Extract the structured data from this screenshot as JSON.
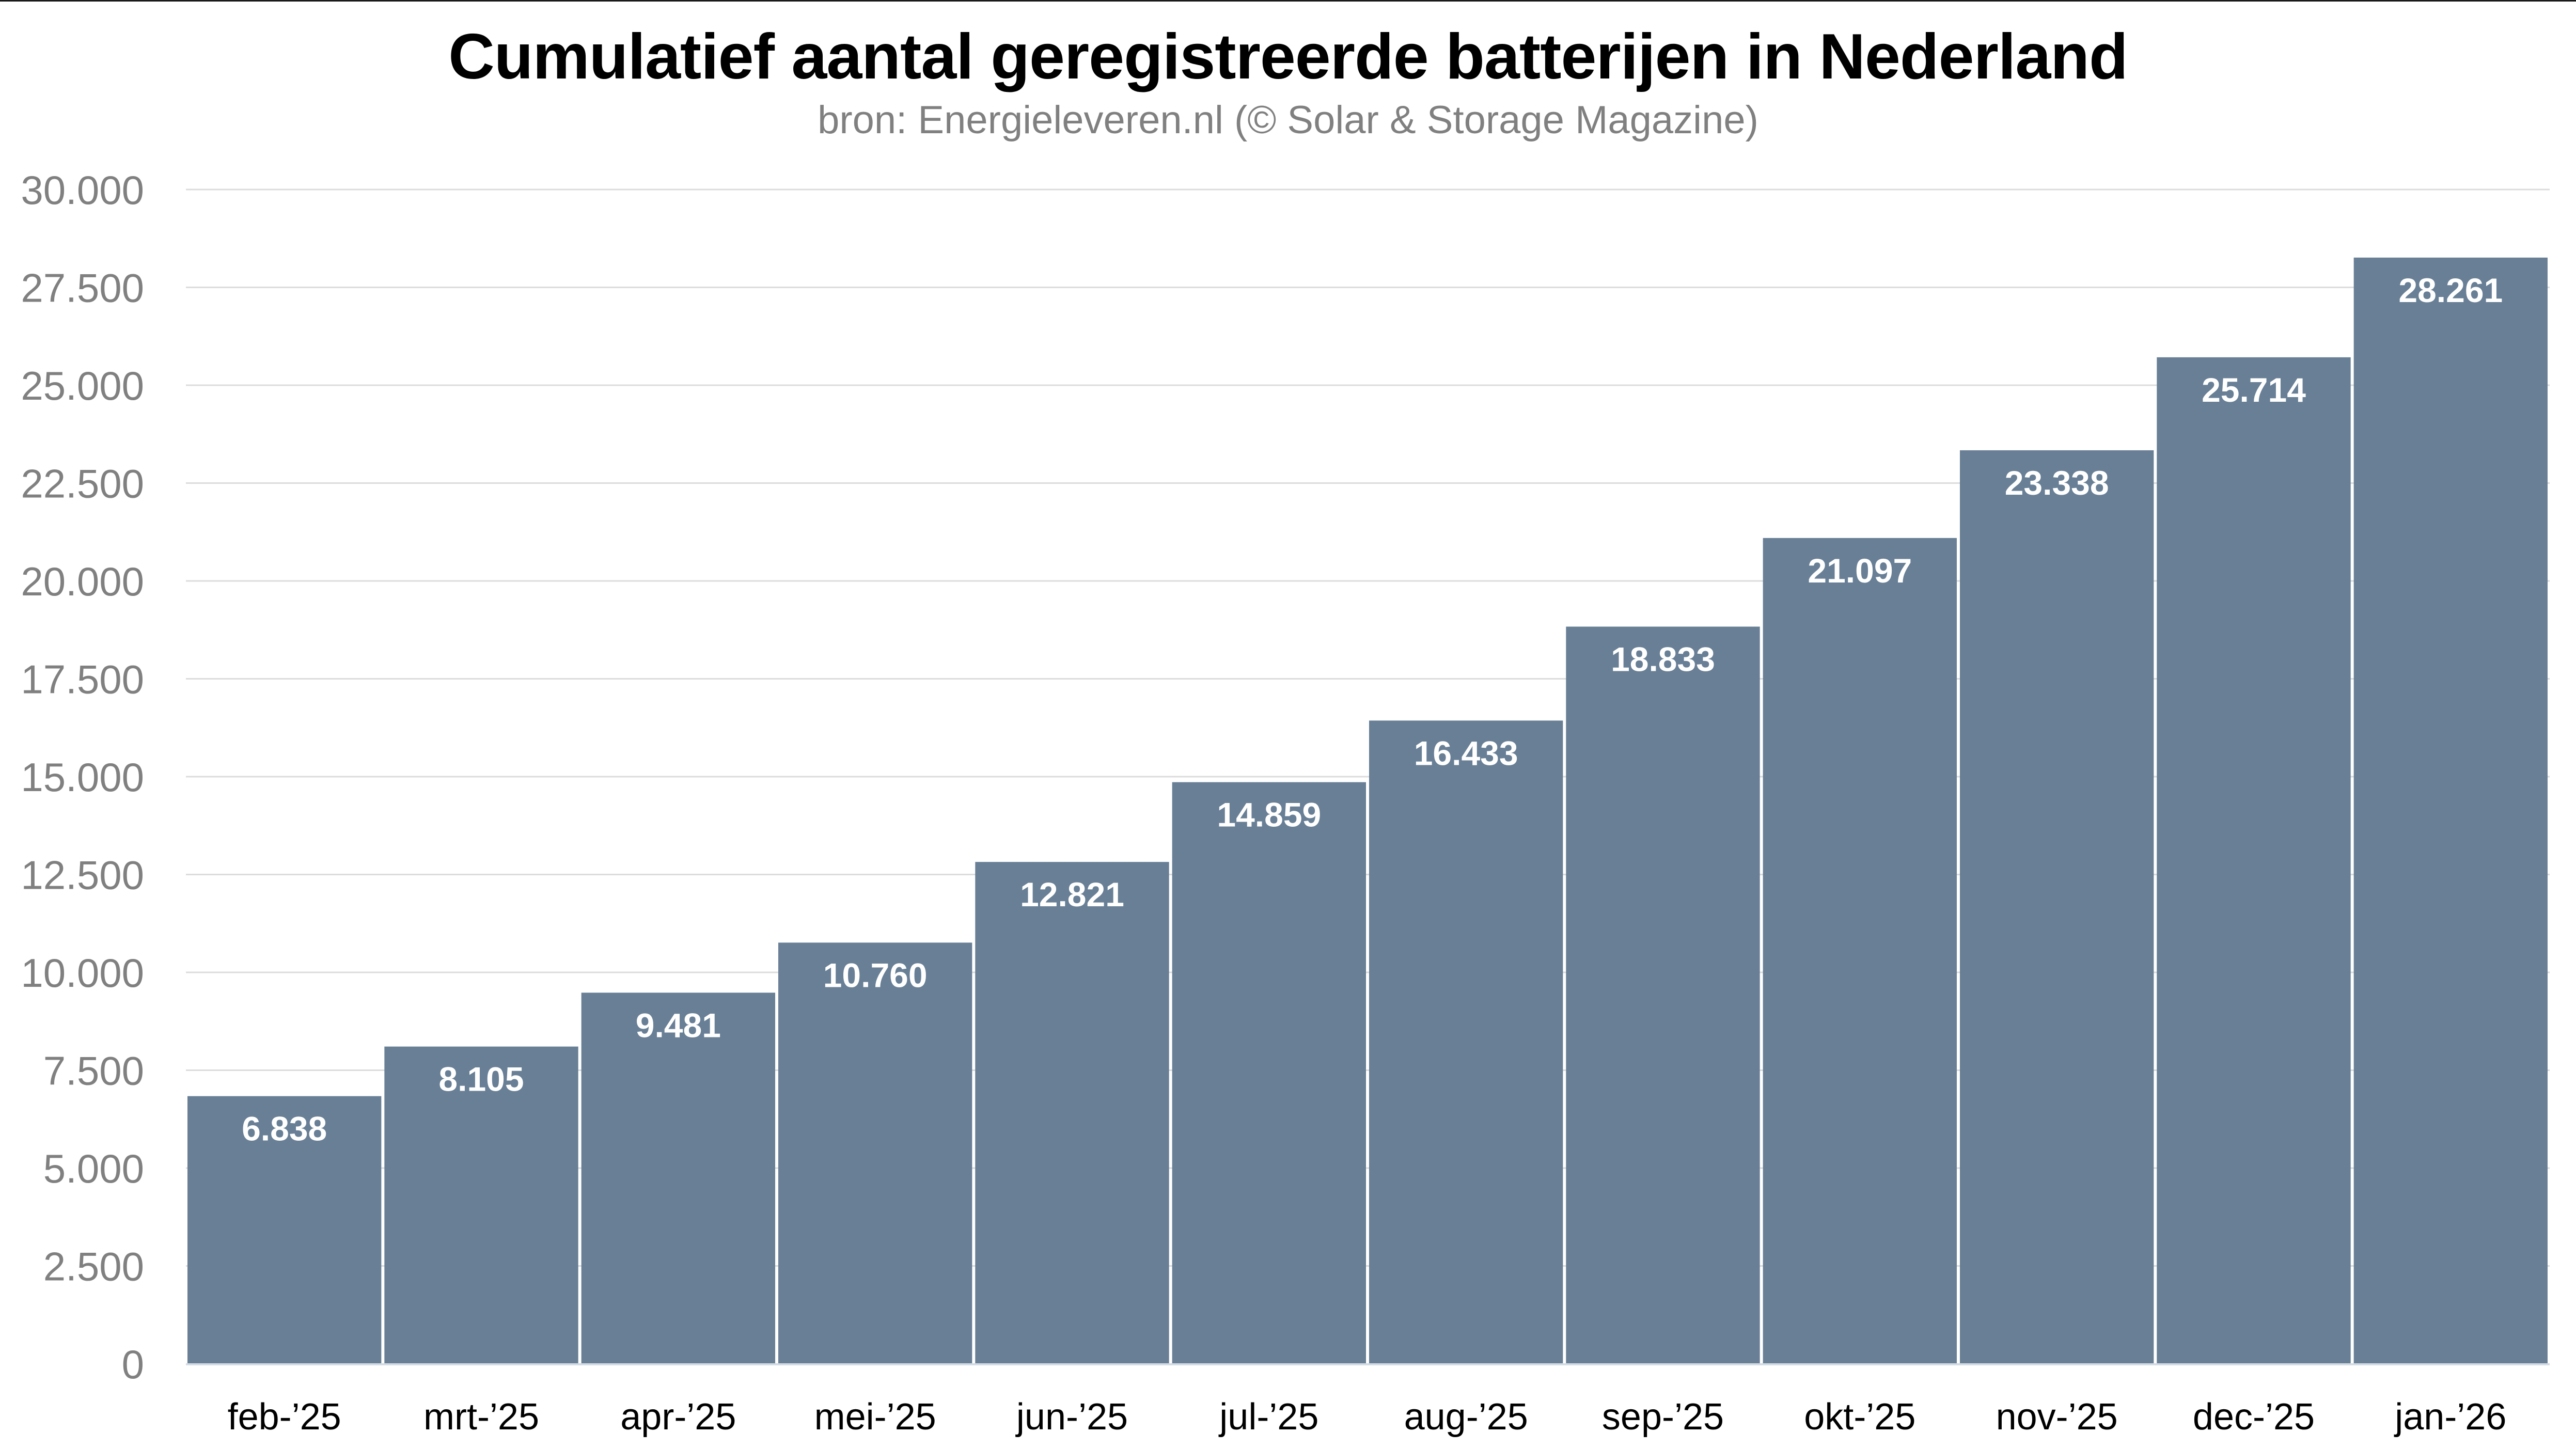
{
  "header": {
    "title": "Cumulatief aantal geregistreerde batterijen in Nederland",
    "subtitle": "bron: Energieleveren.nl (© Solar & Storage Magazine)"
  },
  "colors": {
    "bar": "#687F96",
    "gridline": "#DCDCDC",
    "baseline": "#D3DCE4",
    "axis_label": "#808080",
    "category_label": "#000000",
    "value_label": "#FFFFFF"
  },
  "chart_data": {
    "type": "bar",
    "title": "Cumulatief aantal geregistreerde batterijen in Nederland",
    "subtitle": "bron: Energieleveren.nl (© Solar & Storage Magazine)",
    "xlabel": "",
    "ylabel": "",
    "categories": [
      "feb-’25",
      "mrt-’25",
      "apr-’25",
      "mei-’25",
      "jun-’25",
      "jul-’25",
      "aug-’25",
      "sep-’25",
      "okt-’25",
      "nov-’25",
      "dec-’25",
      "jan-’26"
    ],
    "values": [
      6838,
      8105,
      9481,
      10760,
      12821,
      14859,
      16433,
      18833,
      21097,
      23338,
      25714,
      28261
    ],
    "value_labels": [
      "6.838",
      "8.105",
      "9.481",
      "10.760",
      "12.821",
      "14.859",
      "16.433",
      "18.833",
      "21.097",
      "23.338",
      "25.714",
      "28.261"
    ],
    "ylim": [
      0,
      30000
    ],
    "yticks": [
      0,
      2500,
      5000,
      7500,
      10000,
      12500,
      15000,
      17500,
      20000,
      22500,
      25000,
      27500,
      30000
    ],
    "ytick_labels": [
      "0",
      "2.500",
      "5.000",
      "7.500",
      "10.000",
      "12.500",
      "15.000",
      "17.500",
      "20.000",
      "22.500",
      "25.000",
      "27.500",
      "30.000"
    ],
    "grid": true,
    "legend": "none",
    "data_labels": "inside-top"
  }
}
